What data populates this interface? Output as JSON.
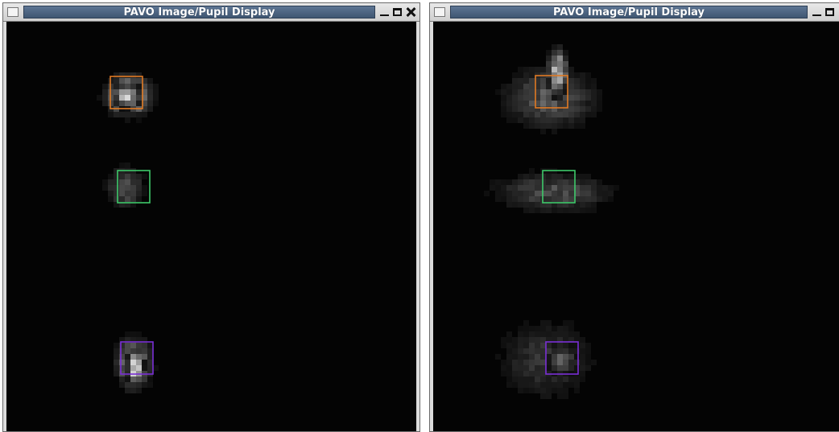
{
  "windows": [
    {
      "title": "PAVO Image/Pupil Display",
      "spots": [
        {
          "color": "orange",
          "hex": "#e07a24"
        },
        {
          "color": "green",
          "hex": "#3ec96a"
        },
        {
          "color": "purple",
          "hex": "#7a2fd6"
        }
      ]
    },
    {
      "title": "PAVO Image/Pupil Display",
      "spots": [
        {
          "color": "orange",
          "hex": "#e07a24"
        },
        {
          "color": "green",
          "hex": "#3ec96a"
        },
        {
          "color": "purple",
          "hex": "#7a2fd6"
        }
      ]
    }
  ],
  "icons": {
    "window_menu": "window-menu-icon",
    "minimize": "minimize-icon",
    "maximize": "maximize-icon",
    "close": "close-icon"
  },
  "colors": {
    "title_band": "#4c6482",
    "display_background": "#040404"
  }
}
